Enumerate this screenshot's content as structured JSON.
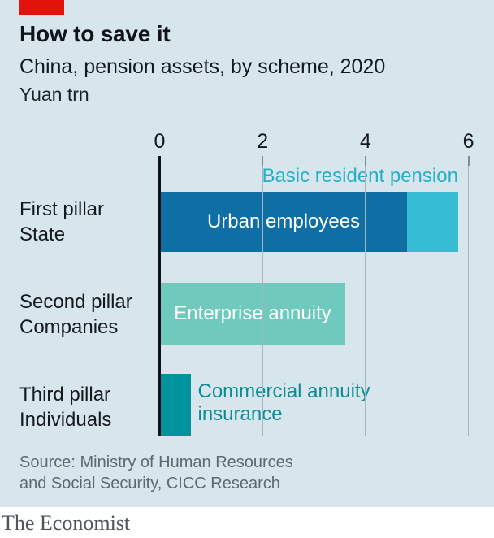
{
  "header": {
    "title": "How to save it",
    "subtitle": "China, pension assets, by scheme, 2020",
    "unit": "Yuan trn"
  },
  "chart_data": {
    "type": "bar",
    "orientation": "horizontal",
    "title": "How to save it",
    "subtitle": "China, pension assets, by scheme, 2020",
    "xlabel": "Yuan trn",
    "xlim": [
      0,
      6
    ],
    "x_ticks": [
      0,
      2,
      4,
      6
    ],
    "grid": "vertical",
    "rows": [
      {
        "pillar": "First pillar",
        "owner": "State",
        "total": 5.8,
        "segments": [
          {
            "name": "Urban employees",
            "value": 4.8,
            "color": "#0f6fa5",
            "label_position": "inside"
          },
          {
            "name": "Basic resident pension",
            "value": 1.0,
            "color": "#36bdd4",
            "label_position": "above-right"
          }
        ]
      },
      {
        "pillar": "Second pillar",
        "owner": "Companies",
        "total": 3.6,
        "segments": [
          {
            "name": "Enterprise annuity",
            "value": 3.6,
            "color": "#70c9bd",
            "label_position": "inside"
          }
        ]
      },
      {
        "pillar": "Third pillar",
        "owner": "Individuals",
        "total": 0.6,
        "segments": [
          {
            "name": "Commercial annuity insurance",
            "value": 0.6,
            "color": "#00939e",
            "label_position": "right"
          }
        ]
      }
    ]
  },
  "colors": {
    "background": "#d7e5ed",
    "brand_red": "#e3120b",
    "dark_blue": "#0f6fa5",
    "cyan": "#36bdd4",
    "seafoam": "#70c9bd",
    "dark_teal": "#00939e",
    "cyan_label_text": "#25afc9",
    "teal_label_text": "#0c8c97",
    "axis_line": "#0d1318",
    "gridline": "#a6b7bf",
    "text_dark": "#14191e",
    "source_gray": "#5d6970"
  },
  "footer": {
    "source_line1": "Source: Ministry of Human Resources",
    "source_line2": "and Social Security, CICC Research",
    "brand": "The Economist"
  }
}
